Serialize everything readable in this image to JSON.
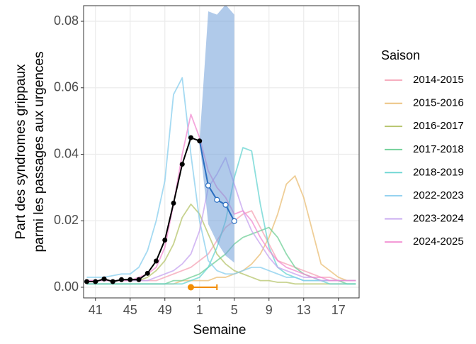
{
  "chart_data": {
    "type": "line",
    "xlabel": "Semaine",
    "ylabel": [
      "Part des syndromes grippaux",
      "parmi les passages aux urgences"
    ],
    "legend_title": "Saison",
    "categories": [
      null,
      "41",
      null,
      null,
      null,
      "45",
      null,
      null,
      null,
      "49",
      null,
      null,
      null,
      "1",
      null,
      null,
      null,
      "5",
      null,
      null,
      null,
      "9",
      null,
      null,
      null,
      "13",
      null,
      null,
      null,
      "17",
      null,
      null
    ],
    "ylim": [
      -0.0032,
      0.0847
    ],
    "yticks": [
      {
        "value": 0,
        "label": "0.00"
      },
      {
        "value": 0.02,
        "label": "0.02"
      },
      {
        "value": 0.04,
        "label": "0.04"
      },
      {
        "value": 0.06,
        "label": "0.06"
      },
      {
        "value": 0.08,
        "label": "0.08"
      }
    ],
    "grid": true,
    "legend": "right",
    "series": [
      {
        "name": "2014-2015",
        "color": "#f4a3b6",
        "values": [
          0.002,
          0.002,
          0.002,
          0.002,
          0.002,
          0.002,
          0.002,
          0.002,
          0.002,
          0.003,
          0.004,
          0.005,
          0.006,
          0.008,
          0.01,
          0.014,
          0.018,
          0.02,
          0.022,
          0.023,
          0.018,
          0.013,
          0.008,
          0.007,
          0.006,
          0.005,
          0.004,
          0.003,
          0.003,
          0.002,
          0.002,
          0.002
        ]
      },
      {
        "name": "2015-2016",
        "color": "#e9bd74",
        "values": [
          0.001,
          0.001,
          0.001,
          0.001,
          0.001,
          0.001,
          0.001,
          0.001,
          0.001,
          0.001,
          0.001,
          0.002,
          0.002,
          0.002,
          0.002,
          0.003,
          0.003,
          0.004,
          0.005,
          0.007,
          0.01,
          0.015,
          0.022,
          0.031,
          0.0335,
          0.027,
          0.017,
          0.007,
          0.005,
          0.003,
          0.002,
          0.002
        ]
      },
      {
        "name": "2016-2017",
        "color": "#b5c46b",
        "values": [
          0.002,
          0.002,
          0.002,
          0.002,
          0.002,
          0.002,
          0.002,
          0.003,
          0.005,
          0.008,
          0.013,
          0.021,
          0.025,
          0.022,
          0.016,
          0.01,
          0.007,
          0.005,
          0.004,
          0.003,
          0.002,
          0.002,
          0.0015,
          0.0015,
          0.001,
          0.001,
          0.001,
          0.001,
          0.001,
          0.001,
          0.001,
          0.001
        ]
      },
      {
        "name": "2017-2018",
        "color": "#6fcf97",
        "values": [
          0.001,
          0.001,
          0.001,
          0.001,
          0.001,
          0.001,
          0.001,
          0.001,
          0.001,
          0.001,
          0.002,
          0.002,
          0.003,
          0.004,
          0.006,
          0.008,
          0.01,
          0.013,
          0.015,
          0.016,
          0.017,
          0.018,
          0.015,
          0.01,
          0.006,
          0.004,
          0.003,
          0.002,
          0.002,
          0.002,
          0.001,
          0.001
        ]
      },
      {
        "name": "2018-2019",
        "color": "#67d4d2",
        "values": [
          0.001,
          0.001,
          0.001,
          0.001,
          0.001,
          0.001,
          0.001,
          0.001,
          0.001,
          0.001,
          0.001,
          0.001,
          0.002,
          0.003,
          0.006,
          0.012,
          0.02,
          0.033,
          0.042,
          0.041,
          0.025,
          0.012,
          0.006,
          0.004,
          0.003,
          0.002,
          0.002,
          0.002,
          0.001,
          0.001,
          0.001,
          0.001
        ]
      },
      {
        "name": "2022-2023",
        "color": "#87cdee",
        "values": [
          0.003,
          0.003,
          0.003,
          0.0035,
          0.004,
          0.004,
          0.006,
          0.011,
          0.02,
          0.032,
          0.058,
          0.063,
          0.04,
          0.02,
          0.008,
          0.005,
          0.004,
          0.004,
          0.005,
          0.006,
          0.006,
          0.005,
          0.004,
          0.003,
          0.003,
          0.002,
          0.002,
          0.002,
          0.002,
          0.002,
          0.002,
          0.002
        ]
      },
      {
        "name": "2023-2024",
        "color": "#c5a3ef",
        "values": [
          0.002,
          0.002,
          0.002,
          0.002,
          0.002,
          0.002,
          0.002,
          0.002,
          0.003,
          0.004,
          0.005,
          0.007,
          0.01,
          0.017,
          0.03,
          0.034,
          0.039,
          0.031,
          0.023,
          0.017,
          0.013,
          0.009,
          0.006,
          0.005,
          0.004,
          0.003,
          0.003,
          0.002,
          0.002,
          0.002,
          0.002,
          0.002
        ]
      },
      {
        "name": "2024-2025",
        "color": "#f28ad0",
        "values": [
          0.002,
          0.002,
          0.002,
          0.002,
          0.002,
          0.002,
          0.003,
          0.004,
          0.006,
          0.012,
          0.025,
          0.04,
          0.052,
          0.045,
          0.035,
          0.03,
          0.027,
          0.022,
          0.023,
          0.02,
          0.015,
          0.011,
          0.008,
          0.006,
          0.005,
          0.004,
          0.003,
          0.003,
          0.002,
          0.002,
          0.002,
          0.002
        ]
      }
    ],
    "observed": {
      "color": "#000000",
      "values": [
        0.0017,
        0.0017,
        0.0025,
        0.0017,
        0.0023,
        0.0023,
        0.0023,
        0.0042,
        0.0079,
        0.0142,
        0.0253,
        0.037,
        0.045,
        0.044,
        null,
        null,
        null,
        null,
        null,
        null,
        null,
        null,
        null,
        null,
        null,
        null,
        null,
        null,
        null,
        null,
        null,
        null
      ]
    },
    "forecast": {
      "color": "#2a6ec0",
      "band_color": "#6f9fd8",
      "values": [
        null,
        null,
        null,
        null,
        null,
        null,
        null,
        null,
        null,
        null,
        null,
        null,
        null,
        0.044,
        0.0306,
        0.0263,
        0.0248,
        0.0199,
        null,
        null,
        null,
        null,
        null,
        null,
        null,
        null,
        null,
        null,
        null,
        null,
        null,
        null
      ],
      "lower": [
        null,
        null,
        null,
        null,
        null,
        null,
        null,
        null,
        null,
        null,
        null,
        null,
        null,
        0.044,
        0.019,
        0.0136,
        0.0095,
        0.0074,
        null,
        null,
        null,
        null,
        null,
        null,
        null,
        null,
        null,
        null,
        null,
        null,
        null,
        null
      ],
      "upper": [
        null,
        null,
        null,
        null,
        null,
        null,
        null,
        null,
        null,
        null,
        null,
        null,
        null,
        0.044,
        0.083,
        0.082,
        0.085,
        0.082,
        null,
        null,
        null,
        null,
        null,
        null,
        null,
        null,
        null,
        null,
        null,
        null,
        null,
        null
      ]
    },
    "peak": {
      "color": "#f28c00",
      "value": 0,
      "x": 12,
      "x_high": 15
    }
  }
}
